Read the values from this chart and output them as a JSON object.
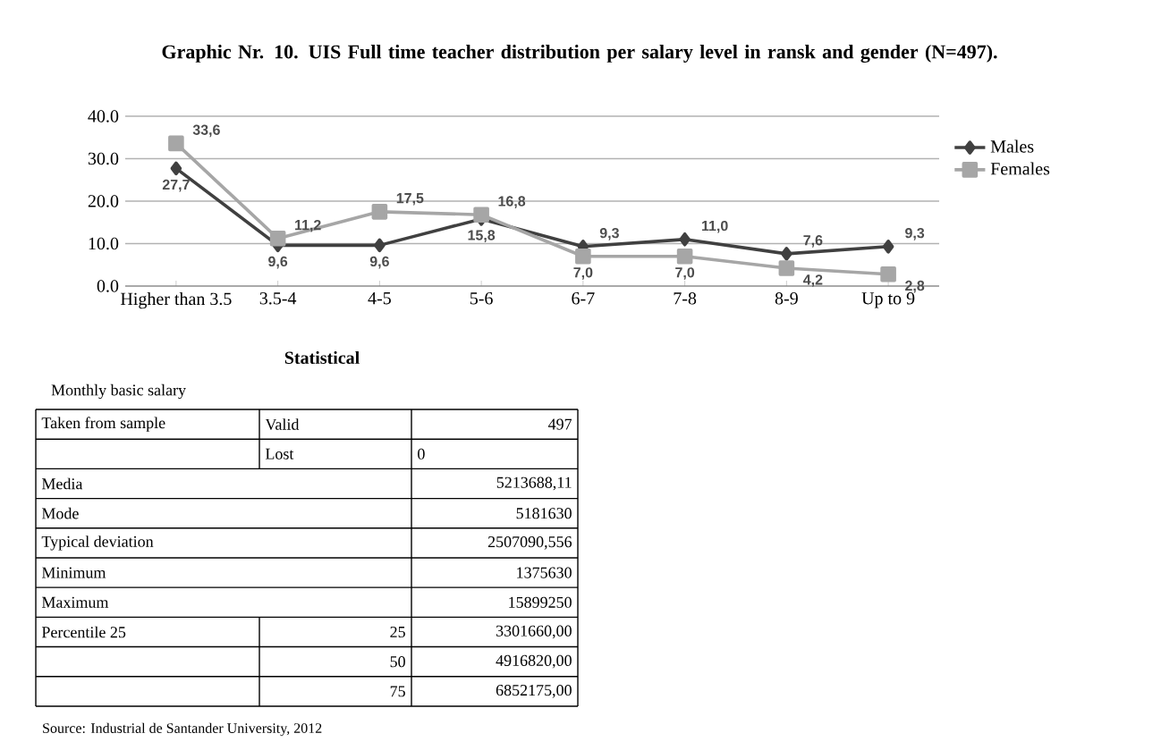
{
  "chart_data": {
    "type": "line",
    "title": "Graphic  Nr. 10. UIS  Full time teacher distribution  per salary level in ransk and gender (N=497).",
    "categories": [
      "Higher than 3.5",
      "3.5-4",
      "4-5",
      "5-6",
      "6-7",
      "7-8",
      "8-9",
      "Up to 9"
    ],
    "series": [
      {
        "name": "Males",
        "color": "#404040",
        "marker": "diamond",
        "values": [
          27.7,
          9.6,
          9.6,
          15.8,
          9.3,
          11.0,
          7.6,
          9.3
        ],
        "value_labels": [
          "27,7",
          "9,6",
          "9,6",
          "15,8",
          "9,3",
          "11,0",
          "7,6",
          "9,3"
        ]
      },
      {
        "name": "Females",
        "color": "#a6a6a6",
        "marker": "square",
        "values": [
          33.6,
          11.2,
          17.5,
          16.8,
          7.0,
          7.0,
          4.2,
          2.8
        ],
        "value_labels": [
          "33,6",
          "11,2",
          "17,5",
          "16,8",
          "7,0",
          "7,0",
          "4,2",
          "2,8"
        ]
      }
    ],
    "ylim": [
      0,
      40
    ],
    "yticks": [
      {
        "value": 0,
        "label": "0.0"
      },
      {
        "value": 10,
        "label": "10.0"
      },
      {
        "value": 20,
        "label": "20.0"
      },
      {
        "value": 30,
        "label": "30.0"
      },
      {
        "value": 40,
        "label": "40.0"
      }
    ],
    "grid": "y",
    "legend": "right",
    "annotations": [
      "Statistical",
      "Monthly basic salary",
      "Taken from sample",
      "Valid",
      "497",
      "Lost",
      "0",
      "Media",
      "5213688,11",
      "Mode",
      "5181630",
      "Typical deviation",
      "2507090,556",
      "Minimum",
      "1375630",
      "Maximum",
      "15899250",
      "Percentile  25",
      "25",
      "3301660,00",
      "50",
      "4916820,00",
      "75",
      "6852175,00",
      "Source:  Industrial de Santander University, 2012"
    ]
  }
}
